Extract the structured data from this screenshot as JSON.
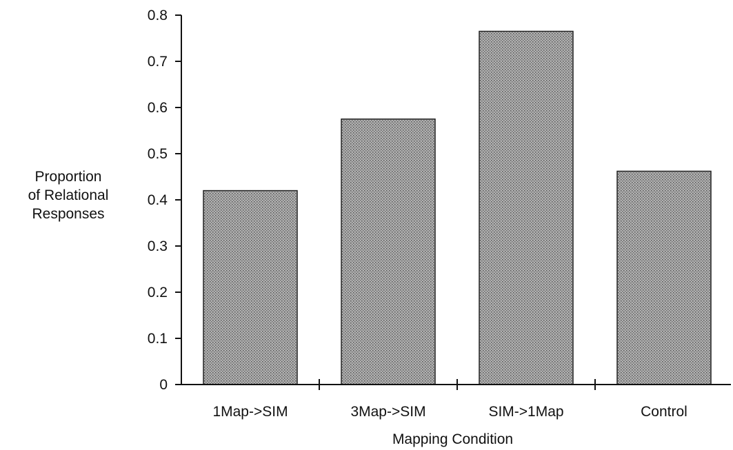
{
  "chart_data": {
    "type": "bar",
    "categories": [
      "1Map->SIM",
      "3Map->SIM",
      "SIM->1Map",
      "Control"
    ],
    "values": [
      0.42,
      0.575,
      0.765,
      0.462
    ],
    "title": "",
    "xlabel": "Mapping Condition",
    "ylabel_lines": [
      "Proportion",
      "of Relational",
      "Responses"
    ],
    "ylim": [
      0,
      0.8
    ],
    "yticks": [
      "0",
      "0.1",
      "0.2",
      "0.3",
      "0.4",
      "0.5",
      "0.6",
      "0.7",
      "0.8"
    ],
    "grid": false,
    "legend": "none",
    "colors": {
      "bar_fill": "#9a9a9a",
      "bar_texture": "#5c5c5c",
      "axis": "#111111"
    }
  }
}
